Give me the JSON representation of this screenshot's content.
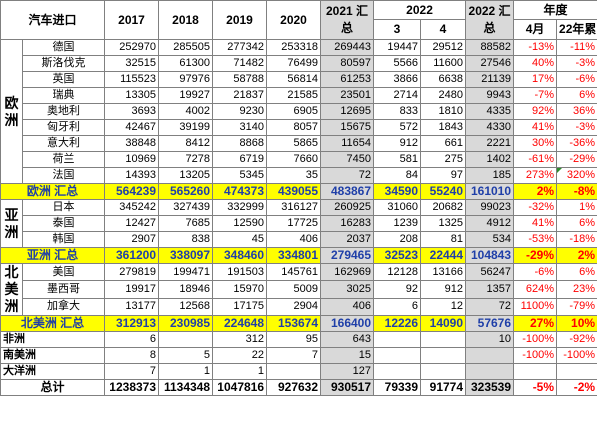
{
  "headers": {
    "title": "汽车进口",
    "y2017": "2017",
    "y2018": "2018",
    "y2019": "2019",
    "y2020": "2020",
    "sum2021": "2021 汇总",
    "y2022": "2022",
    "m3": "3",
    "m4": "4",
    "sum2022": "2022 汇总",
    "annual": "年度",
    "april": "4月",
    "ytd": "22年累"
  },
  "regions": {
    "europe": "欧洲",
    "asia": "亚洲",
    "namerica": "北美洲"
  },
  "europe_rows": [
    {
      "name": "德国",
      "v2017": "252970",
      "v2018": "285505",
      "v2019": "277342",
      "v2020": "253318",
      "s2021": "269443",
      "m3": "19447",
      "m4": "29512",
      "s2022": "88582",
      "apr": "-13%",
      "ytd": "-11%"
    },
    {
      "name": "斯洛伐克",
      "v2017": "32515",
      "v2018": "61300",
      "v2019": "71482",
      "v2020": "76499",
      "s2021": "80597",
      "m3": "5566",
      "m4": "11600",
      "s2022": "27546",
      "apr": "40%",
      "ytd": "-3%"
    },
    {
      "name": "英国",
      "v2017": "115523",
      "v2018": "97976",
      "v2019": "58788",
      "v2020": "56814",
      "s2021": "61253",
      "m3": "3866",
      "m4": "6638",
      "s2022": "21139",
      "apr": "17%",
      "ytd": "-6%"
    },
    {
      "name": "瑞典",
      "v2017": "13305",
      "v2018": "19927",
      "v2019": "21837",
      "v2020": "21585",
      "s2021": "23501",
      "m3": "2714",
      "m4": "2480",
      "s2022": "9943",
      "apr": "-7%",
      "ytd": "6%"
    },
    {
      "name": "奥地利",
      "v2017": "3693",
      "v2018": "4002",
      "v2019": "9230",
      "v2020": "6905",
      "s2021": "12695",
      "m3": "833",
      "m4": "1810",
      "s2022": "4335",
      "apr": "92%",
      "ytd": "36%"
    },
    {
      "name": "匈牙利",
      "v2017": "42467",
      "v2018": "39199",
      "v2019": "3140",
      "v2020": "8057",
      "s2021": "15675",
      "m3": "572",
      "m4": "1843",
      "s2022": "4330",
      "apr": "41%",
      "ytd": "-3%"
    },
    {
      "name": "意大利",
      "v2017": "38848",
      "v2018": "8412",
      "v2019": "8868",
      "v2020": "5865",
      "s2021": "11654",
      "m3": "912",
      "m4": "661",
      "s2022": "2221",
      "apr": "30%",
      "ytd": "-36%"
    },
    {
      "name": "荷兰",
      "v2017": "10969",
      "v2018": "7278",
      "v2019": "6719",
      "v2020": "7660",
      "s2021": "7450",
      "m3": "581",
      "m4": "275",
      "s2022": "1402",
      "apr": "-61%",
      "ytd": "-29%"
    },
    {
      "name": "法国",
      "v2017": "14393",
      "v2018": "13205",
      "v2019": "5345",
      "v2020": "35",
      "s2021": "72",
      "m3": "84",
      "m4": "97",
      "s2022": "185",
      "apr": "273%",
      "ytd": "320%"
    }
  ],
  "europe_total": {
    "name": "欧洲 汇总",
    "v2017": "564239",
    "v2018": "565260",
    "v2019": "474373",
    "v2020": "439055",
    "s2021": "483867",
    "m3": "34590",
    "m4": "55240",
    "s2022": "161010",
    "apr": "2%",
    "ytd": "-8%"
  },
  "asia_rows": [
    {
      "name": "日本",
      "v2017": "345242",
      "v2018": "327439",
      "v2019": "332999",
      "v2020": "316127",
      "s2021": "260925",
      "m3": "31060",
      "m4": "20682",
      "s2022": "99023",
      "apr": "-32%",
      "ytd": "1%"
    },
    {
      "name": "泰国",
      "v2017": "12427",
      "v2018": "7685",
      "v2019": "12590",
      "v2020": "17725",
      "s2021": "16283",
      "m3": "1239",
      "m4": "1325",
      "s2022": "4912",
      "apr": "41%",
      "ytd": "6%"
    },
    {
      "name": "韩国",
      "v2017": "2907",
      "v2018": "838",
      "v2019": "45",
      "v2020": "406",
      "s2021": "2037",
      "m3": "208",
      "m4": "81",
      "s2022": "534",
      "apr": "-53%",
      "ytd": "-18%"
    }
  ],
  "asia_total": {
    "name": "亚洲 汇总",
    "v2017": "361200",
    "v2018": "338097",
    "v2019": "348460",
    "v2020": "334801",
    "s2021": "279465",
    "m3": "32523",
    "m4": "22444",
    "s2022": "104843",
    "apr": "-29%",
    "ytd": "2%"
  },
  "na_rows": [
    {
      "name": "美国",
      "v2017": "279819",
      "v2018": "199471",
      "v2019": "191503",
      "v2020": "145761",
      "s2021": "162969",
      "m3": "12128",
      "m4": "13166",
      "s2022": "56247",
      "apr": "-6%",
      "ytd": "6%"
    },
    {
      "name": "墨西哥",
      "v2017": "19917",
      "v2018": "18946",
      "v2019": "15970",
      "v2020": "5009",
      "s2021": "3025",
      "m3": "92",
      "m4": "912",
      "s2022": "1357",
      "apr": "624%",
      "ytd": "23%"
    },
    {
      "name": "加拿大",
      "v2017": "13177",
      "v2018": "12568",
      "v2019": "17175",
      "v2020": "2904",
      "s2021": "406",
      "m3": "6",
      "m4": "12",
      "s2022": "72",
      "apr": "1100%",
      "ytd": "-79%"
    }
  ],
  "na_total": {
    "name": "北美洲 汇总",
    "v2017": "312913",
    "v2018": "230985",
    "v2019": "224648",
    "v2020": "153674",
    "s2021": "166400",
    "m3": "12226",
    "m4": "14090",
    "s2022": "57676",
    "apr": "27%",
    "ytd": "10%"
  },
  "other_rows": [
    {
      "name": "非洲",
      "v2017": "6",
      "v2018": "",
      "v2019": "312",
      "v2020": "95",
      "s2021": "643",
      "m3": "",
      "m4": "",
      "s2022": "10",
      "apr": "-100%",
      "ytd": "-92%"
    },
    {
      "name": "南美洲",
      "v2017": "8",
      "v2018": "5",
      "v2019": "22",
      "v2020": "7",
      "s2021": "15",
      "m3": "",
      "m4": "",
      "s2022": "",
      "apr": "-100%",
      "ytd": "-100%"
    },
    {
      "name": "大洋洲",
      "v2017": "7",
      "v2018": "1",
      "v2019": "1",
      "v2020": "",
      "s2021": "127",
      "m3": "",
      "m4": "",
      "s2022": "",
      "apr": "",
      "ytd": ""
    }
  ],
  "grand_total": {
    "name": "总计",
    "v2017": "1238373",
    "v2018": "1134348",
    "v2019": "1047816",
    "v2020": "927632",
    "s2021": "930517",
    "m3": "79339",
    "m4": "91774",
    "s2022": "323539",
    "apr": "-5%",
    "ytd": "-2%"
  }
}
